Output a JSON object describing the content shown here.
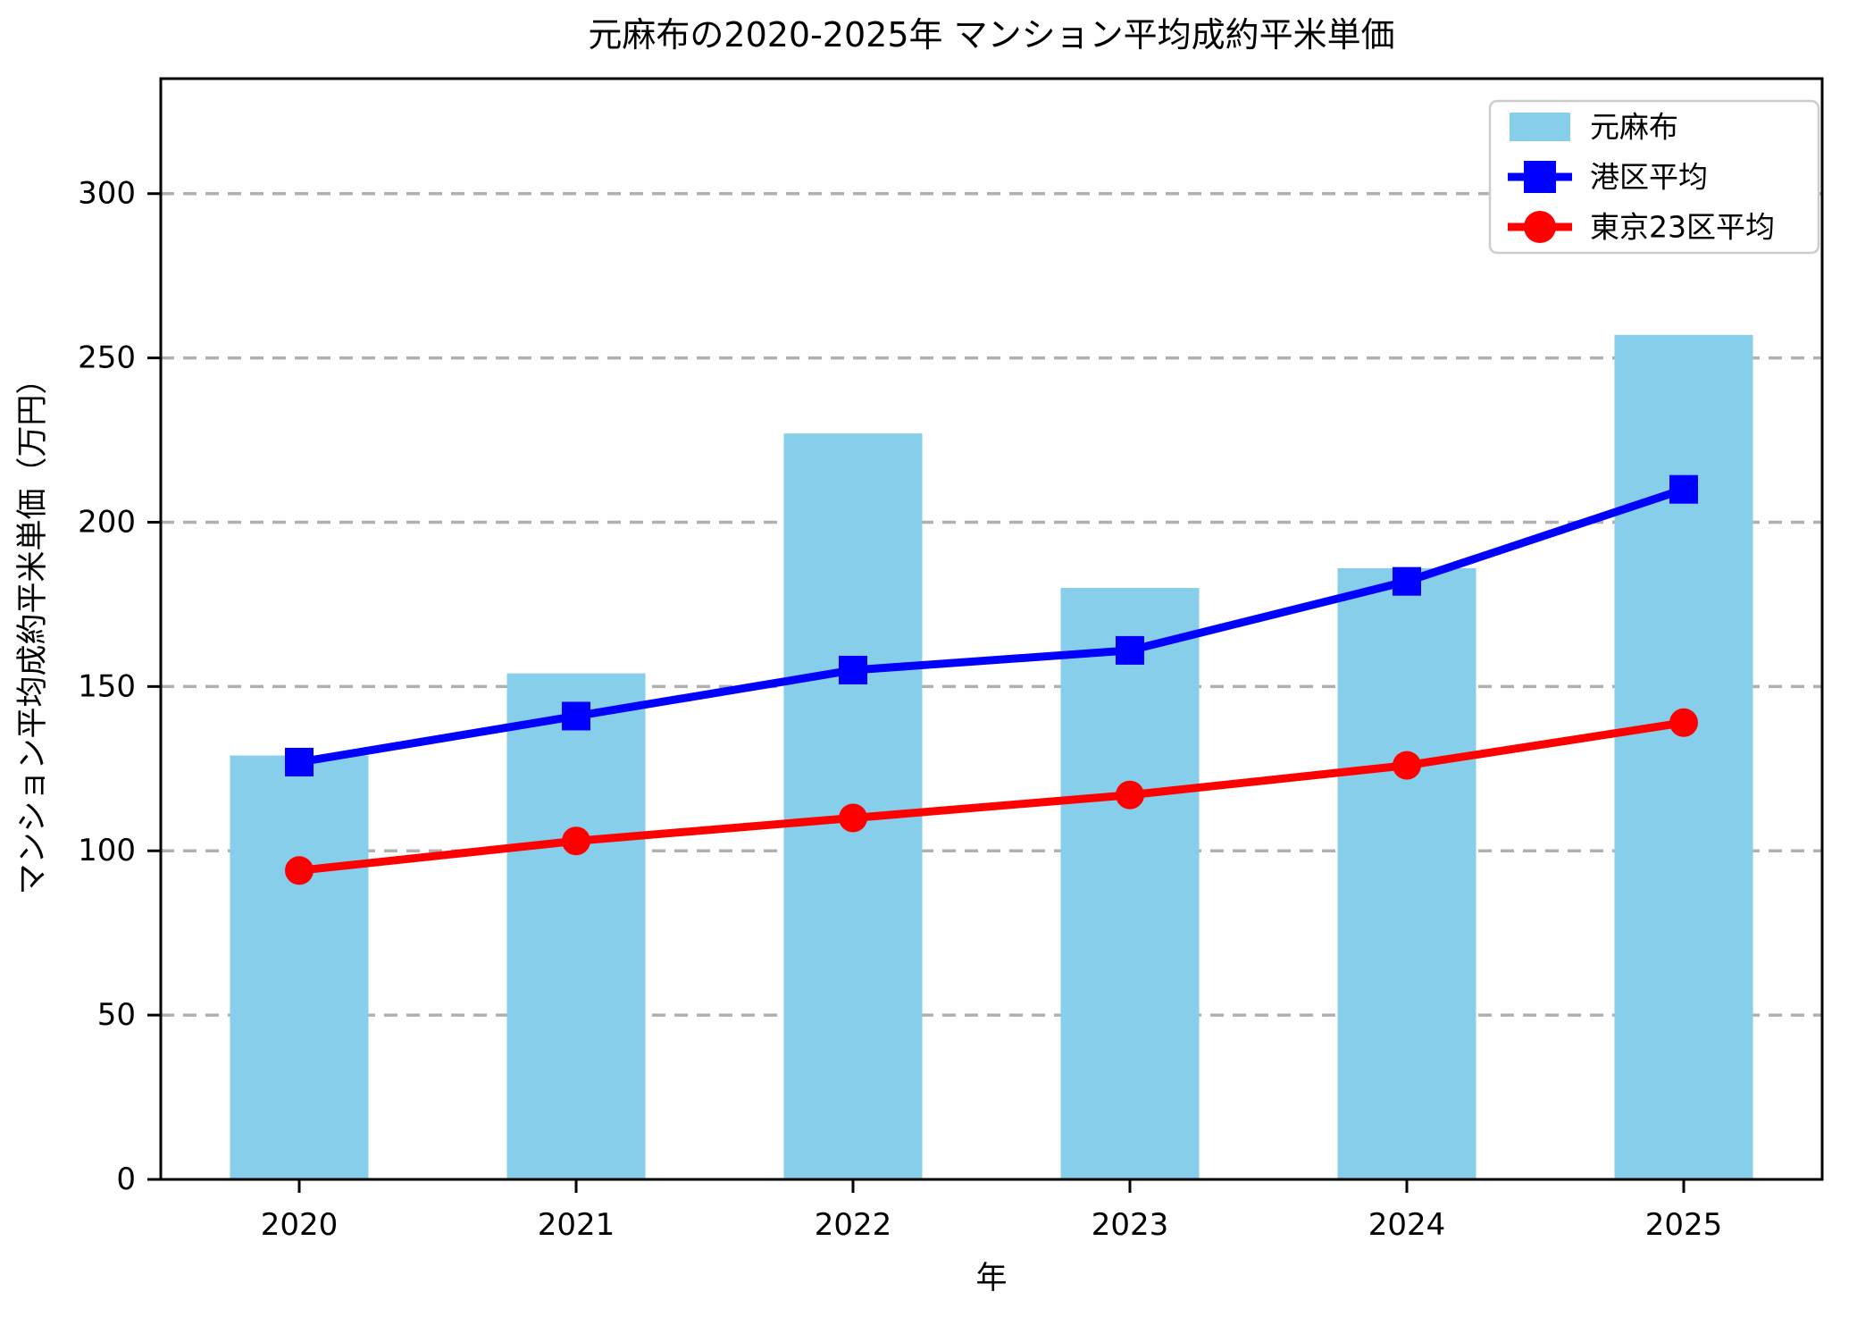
{
  "chart_data": {
    "type": "combo",
    "title": "元麻布の2020-2025年 マンション平均成約平米単価",
    "xlabel": "年",
    "ylabel": "マンション平均成約平米単価（万円）",
    "categories": [
      "2020",
      "2021",
      "2022",
      "2023",
      "2024",
      "2025"
    ],
    "series": [
      {
        "name": "元麻布",
        "type": "bar",
        "color": "#87CEEB",
        "values": [
          129,
          154,
          227,
          180,
          186,
          257
        ]
      },
      {
        "name": "港区平均",
        "type": "line",
        "marker": "square",
        "color": "#0000FF",
        "values": [
          127,
          141,
          155,
          161,
          182,
          210
        ]
      },
      {
        "name": "東京23区平均",
        "type": "line",
        "marker": "circle",
        "color": "#FF0000",
        "values": [
          94,
          103,
          110,
          117,
          126,
          139
        ]
      }
    ],
    "ylim": [
      0,
      335
    ],
    "yticks": [
      0,
      50,
      100,
      150,
      200,
      250,
      300
    ],
    "grid": "horizontal-dashed",
    "grid_color": "#b0b0b0",
    "legend_position": "upper-right",
    "background": "#ffffff"
  }
}
